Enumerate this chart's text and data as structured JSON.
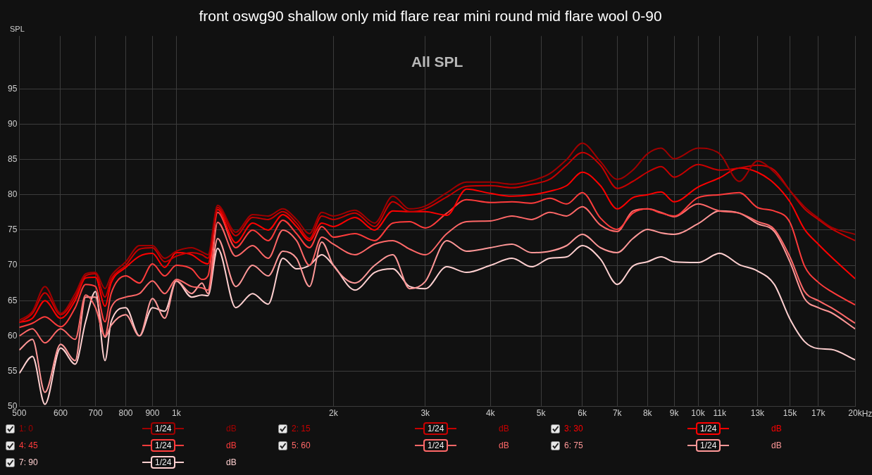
{
  "chart_data": {
    "type": "line",
    "title": "front oswg90 shallow only mid flare rear mini round mid flare wool 0-90",
    "ylabel": "SPL",
    "annotations": [
      "All SPL",
      "1/24",
      "dB"
    ],
    "log": "x",
    "grid": true,
    "legend": "bottom",
    "x": [
      500,
      530,
      560,
      600,
      640,
      670,
      700,
      730,
      750,
      800,
      850,
      900,
      950,
      1000,
      1070,
      1120,
      1150,
      1200,
      1300,
      1400,
      1500,
      1600,
      1700,
      1800,
      1900,
      2000,
      2200,
      2400,
      2600,
      2800,
      3000,
      3300,
      3600,
      4000,
      4400,
      4800,
      5200,
      5600,
      6000,
      6500,
      7000,
      7500,
      8000,
      8500,
      9000,
      10000,
      11000,
      12000,
      13000,
      14000,
      15000,
      16000,
      17000,
      18000,
      20000
    ],
    "xlim": [
      500,
      20000
    ],
    "xticks": [
      500,
      600,
      700,
      800,
      900,
      {
        "value": 1000,
        "label": "1k"
      },
      {
        "value": 2000,
        "label": "2k"
      },
      {
        "value": 3000,
        "label": "3k"
      },
      {
        "value": 4000,
        "label": "4k"
      },
      {
        "value": 5000,
        "label": "5k"
      },
      {
        "value": 6000,
        "label": "6k"
      },
      {
        "value": 7000,
        "label": "7k"
      },
      {
        "value": 8000,
        "label": "8k"
      },
      {
        "value": 9000,
        "label": "9k"
      },
      {
        "value": 10000,
        "label": "10k"
      },
      {
        "value": 11000,
        "label": "11k"
      },
      {
        "value": 13000,
        "label": "13k"
      },
      {
        "value": 15000,
        "label": "15k"
      },
      {
        "value": 17000,
        "label": "17k"
      },
      {
        "value": 20000,
        "label": "20k"
      }
    ],
    "xlabel": "Hz",
    "ylim": [
      50,
      102.5
    ],
    "yticks": [
      50,
      55,
      60,
      65,
      70,
      75,
      80,
      85,
      90,
      95
    ],
    "series": [
      {
        "name": "1: 0",
        "color": "#a00000",
        "values": [
          62.2,
          63.5,
          67,
          63.2,
          66,
          68.8,
          69,
          66.7,
          68.5,
          70.5,
          72.8,
          72.8,
          71,
          72,
          72.5,
          71.9,
          71.5,
          78.5,
          74.7,
          77.2,
          77,
          78,
          76.5,
          74.5,
          77.5,
          77,
          77.8,
          76,
          79.8,
          78,
          78.4,
          80.3,
          81.8,
          81.8,
          81.5,
          82,
          83,
          85,
          87.3,
          84.7,
          82.2,
          83.5,
          85.8,
          86.6,
          85.1,
          86.6,
          85.8,
          81.9,
          84.8,
          83.2,
          80.6,
          78.3,
          76.7,
          75.4,
          74.4
        ]
      },
      {
        "name": "2: 15",
        "color": "#c80000",
        "values": [
          61.9,
          63.2,
          66.1,
          63,
          65.5,
          68.5,
          68.8,
          65.5,
          68,
          70,
          72.3,
          72.5,
          70.5,
          71.3,
          71.8,
          71.5,
          71,
          78.2,
          74.2,
          76.8,
          76.5,
          77.6,
          76,
          73.8,
          77,
          76.5,
          77.4,
          75.5,
          79,
          77.6,
          78,
          79.7,
          81.2,
          81.3,
          81,
          81.5,
          82.2,
          84.2,
          86,
          84.2,
          80.9,
          81.9,
          83.2,
          84,
          82.5,
          84.3,
          83.5,
          83.8,
          84.2,
          83.5,
          80.6,
          78,
          76.5,
          75.2,
          73.5
        ]
      },
      {
        "name": "3: 30",
        "color": "#ff0000",
        "values": [
          61.9,
          62.5,
          65,
          62.5,
          65,
          68.2,
          68.3,
          64.2,
          67.5,
          69.7,
          71.3,
          71.7,
          69.7,
          71.8,
          71.5,
          70.5,
          70.2,
          77.9,
          73.2,
          76,
          75,
          77.2,
          75.5,
          73.5,
          76,
          75.5,
          76.8,
          75,
          77.7,
          77.6,
          77.6,
          77.1,
          80.8,
          80.2,
          79.8,
          80,
          80.5,
          81.3,
          83.2,
          81.3,
          78,
          79.6,
          80,
          80.4,
          79,
          81.1,
          82.4,
          83.8,
          83.2,
          81.6,
          79,
          75.1,
          73,
          71.2,
          68.1
        ]
      },
      {
        "name": "4: 45",
        "color": "#ff3c3c",
        "values": [
          61.2,
          61.8,
          62.7,
          61.3,
          64,
          67.3,
          67,
          62,
          66,
          68.5,
          67.5,
          70.2,
          68.5,
          70,
          69.5,
          68,
          68.5,
          77.5,
          72.5,
          75,
          73.5,
          76.4,
          74.5,
          72.5,
          75.5,
          74,
          74.5,
          73.5,
          76,
          76.2,
          75.3,
          77.4,
          79.3,
          78.9,
          79,
          78.8,
          79.5,
          78.7,
          80.3,
          76.7,
          75.1,
          77.4,
          78,
          77.4,
          77,
          79.6,
          80,
          80.3,
          78.2,
          77.7,
          76.1,
          69.9,
          67.6,
          66.3,
          64.4
        ]
      },
      {
        "name": "5: 60",
        "color": "#ff6868",
        "values": [
          60,
          61,
          59,
          61,
          59.5,
          65.8,
          64,
          60,
          64,
          65.5,
          66,
          67.8,
          66,
          68,
          67,
          66.8,
          66.5,
          76.1,
          71.3,
          72.8,
          71,
          75,
          73.5,
          70,
          74,
          73,
          71.5,
          73,
          73.5,
          72.3,
          71.5,
          74.5,
          76.2,
          76.3,
          77,
          76.5,
          77.5,
          77,
          78.3,
          75.7,
          74.8,
          77.7,
          78,
          77.5,
          76.9,
          78.7,
          77.7,
          77.4,
          76.2,
          75.1,
          71.2,
          66.3,
          65,
          64,
          61.8
        ]
      },
      {
        "name": "6: 75",
        "color": "#ff9898",
        "values": [
          58,
          59.5,
          52,
          58.8,
          56.5,
          65.5,
          65.5,
          59.8,
          61.5,
          63,
          60,
          65.3,
          62.5,
          67.8,
          66,
          67.5,
          66,
          73.8,
          67,
          70,
          68.5,
          72,
          71,
          67,
          73.3,
          70,
          67.5,
          70,
          71.5,
          66.7,
          67.7,
          73.5,
          72,
          72.5,
          73,
          71.8,
          72,
          72.8,
          74.4,
          72.5,
          71.8,
          73.8,
          75.1,
          74.6,
          74.4,
          75.9,
          77.7,
          77.4,
          75.9,
          74.8,
          70.5,
          65.3,
          64,
          63.3,
          61
        ]
      },
      {
        "name": "7: 90",
        "color": "#ffd0d0",
        "values": [
          54.7,
          57.1,
          50.3,
          58.3,
          56,
          62,
          66.3,
          56.5,
          62,
          64,
          60,
          64,
          63.5,
          67.8,
          65.5,
          65.8,
          65.7,
          72.4,
          64,
          66,
          64.5,
          71,
          69.5,
          70,
          71.5,
          70,
          66.5,
          69,
          69.5,
          67,
          66.7,
          69.8,
          69,
          70,
          71,
          69.8,
          71,
          71.2,
          72.8,
          70.9,
          67.3,
          69.9,
          70.5,
          71.2,
          70.5,
          70.4,
          71.7,
          70.1,
          69.2,
          67.3,
          62.4,
          59.2,
          58.2,
          58.1,
          56.6
        ]
      }
    ]
  }
}
